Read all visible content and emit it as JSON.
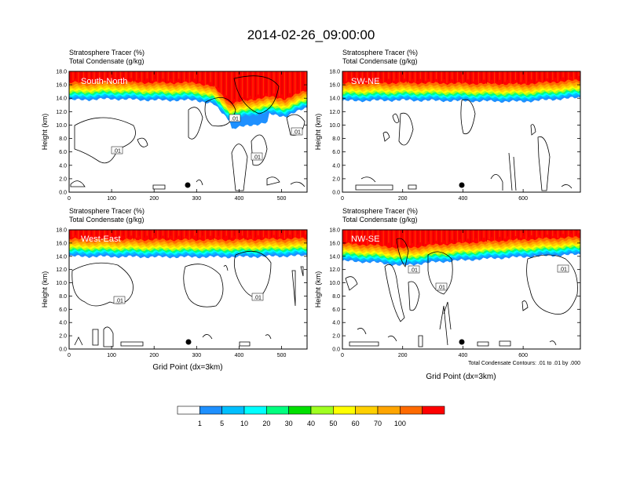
{
  "figure": {
    "title": "2014-02-26_09:00:00",
    "contour_note": "Total Condensate Contours: .01 to .01 by .000"
  },
  "colorbar": {
    "colors": [
      "#ffffff",
      "#1e90ff",
      "#00bfff",
      "#00ffff",
      "#00ff7f",
      "#00e000",
      "#a0ff20",
      "#ffff00",
      "#ffd000",
      "#ffa500",
      "#ff6a00",
      "#ff0000"
    ],
    "labels": [
      "1",
      "5",
      "10",
      "20",
      "30",
      "40",
      "50",
      "60",
      "70",
      "100"
    ]
  },
  "chart_data": [
    {
      "type": "heatmap",
      "panel": "South-North",
      "title_lines": [
        "Stratosphere Tracer   (%)",
        "Total Condensate   (g/kg)"
      ],
      "ylabel": "Height (km)",
      "xlabel": "",
      "xlim": [
        0,
        560
      ],
      "ylim": [
        0,
        18
      ],
      "xticks": [
        "0",
        "100",
        "200",
        "300",
        "400",
        "500"
      ],
      "yticks": [
        "0.0",
        "2.0",
        "4.0",
        "6.0",
        "8.0",
        "10.0",
        "12.0",
        "14.0",
        "16.0",
        "18.0"
      ],
      "contour_labels": [
        ".01",
        ".01",
        ".01",
        ".01"
      ],
      "tracer_base_km": [
        [
          0,
          14.6
        ],
        [
          100,
          14.8
        ],
        [
          200,
          14.6
        ],
        [
          300,
          14.6
        ],
        [
          340,
          14.0
        ],
        [
          380,
          11.5
        ],
        [
          420,
          12.0
        ],
        [
          470,
          12.5
        ],
        [
          510,
          12.2
        ],
        [
          560,
          13.5
        ]
      ]
    },
    {
      "type": "heatmap",
      "panel": "SW-NE",
      "title_lines": [
        "Stratosphere Tracer   (%)",
        "Total Condensate   (g/kg)"
      ],
      "ylabel": "Height (km)",
      "xlabel": "",
      "xlim": [
        0,
        790
      ],
      "ylim": [
        0,
        18
      ],
      "xticks": [
        "0",
        "200",
        "400",
        "600"
      ],
      "yticks": [
        "0.0",
        "2.0",
        "4.0",
        "6.0",
        "8.0",
        "10.0",
        "12.0",
        "14.0",
        "16.0",
        "18.0"
      ],
      "contour_labels": [],
      "tracer_base_km": [
        [
          0,
          14.5
        ],
        [
          200,
          14.6
        ],
        [
          400,
          14.5
        ],
        [
          600,
          14.4
        ],
        [
          790,
          15.0
        ]
      ]
    },
    {
      "type": "heatmap",
      "panel": "West-East",
      "title_lines": [
        "Stratosphere Tracer   (%)",
        "Total Condensate   (g/kg)"
      ],
      "ylabel": "Height (km)",
      "xlabel": "Grid Point (dx=3km)",
      "xlim": [
        0,
        560
      ],
      "ylim": [
        0,
        18
      ],
      "xticks": [
        "0",
        "100",
        "200",
        "300",
        "400",
        "500"
      ],
      "yticks": [
        "0.0",
        "2.0",
        "4.0",
        "6.0",
        "8.0",
        "10.0",
        "12.0",
        "14.0",
        "16.0",
        "18.0"
      ],
      "contour_labels": [
        ".01",
        ".01"
      ],
      "tracer_base_km": [
        [
          0,
          14.9
        ],
        [
          200,
          14.8
        ],
        [
          400,
          14.8
        ],
        [
          560,
          15.0
        ]
      ]
    },
    {
      "type": "heatmap",
      "panel": "NW-SE",
      "title_lines": [
        "Stratosphere Tracer   (%)",
        "Total Condensate   (g/kg)"
      ],
      "ylabel": "Height (km)",
      "xlabel": "Grid Point (dx=3km)",
      "xlim": [
        0,
        790
      ],
      "ylim": [
        0,
        18
      ],
      "xticks": [
        "0",
        "200",
        "400",
        "600"
      ],
      "yticks": [
        "0.0",
        "2.0",
        "4.0",
        "6.0",
        "8.0",
        "10.0",
        "12.0",
        "14.0",
        "16.0",
        "18.0"
      ],
      "contour_labels": [
        ".01",
        ".01",
        ".01"
      ],
      "tracer_base_km": [
        [
          0,
          14.2
        ],
        [
          100,
          14.0
        ],
        [
          200,
          13.5
        ],
        [
          300,
          14.0
        ],
        [
          500,
          14.6
        ],
        [
          790,
          15.2
        ]
      ]
    }
  ]
}
